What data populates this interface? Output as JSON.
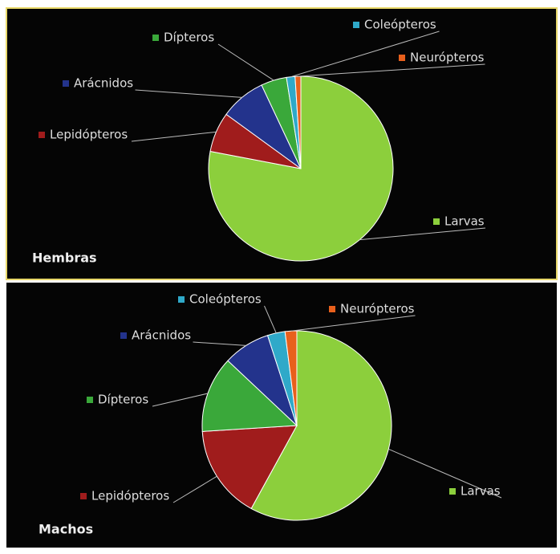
{
  "chart_data": [
    {
      "type": "pie",
      "title": "Hembras",
      "categories": [
        "Larvas",
        "Lepidópteros",
        "Arácnidos",
        "Dípteros",
        "Coleópteros",
        "Neurópteros"
      ],
      "values": [
        78,
        7,
        8,
        4.5,
        1.5,
        1
      ],
      "colors": [
        "#8ccf3c",
        "#a01c1c",
        "#23338c",
        "#3aa83a",
        "#2fa9c9",
        "#e8601c"
      ]
    },
    {
      "type": "pie",
      "title": "Machos",
      "categories": [
        "Larvas",
        "Lepidópteros",
        "Dípteros",
        "Arácnidos",
        "Coleópteros",
        "Neurópteros"
      ],
      "values": [
        58,
        16,
        13,
        8,
        3,
        2
      ],
      "colors": [
        "#8ccf3c",
        "#a01c1c",
        "#3aa83a",
        "#23338c",
        "#2fa9c9",
        "#e8601c"
      ]
    }
  ]
}
